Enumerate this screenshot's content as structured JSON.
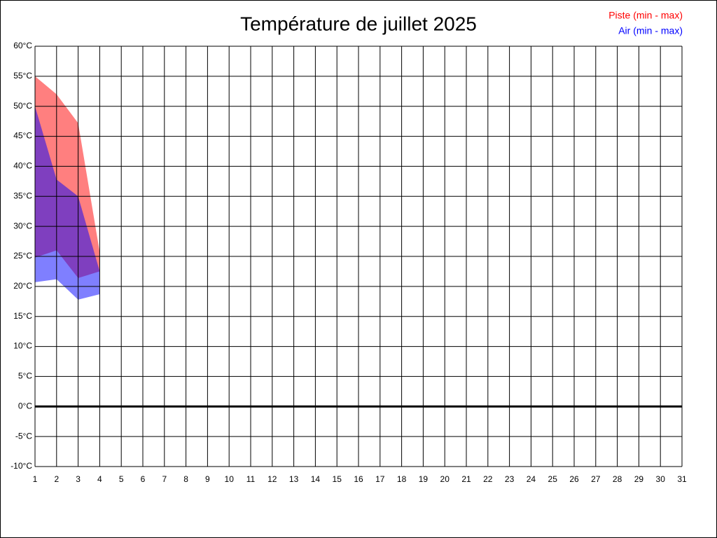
{
  "chart_data": {
    "type": "range",
    "title": "Température de juillet 2025",
    "x": [
      1,
      2,
      3,
      4
    ],
    "series": [
      {
        "name": "Piste (min - max)",
        "color": "#ff0000",
        "min": [
          24.8,
          26,
          21.4,
          22.5
        ],
        "max": [
          55,
          52,
          47.2,
          25.7
        ]
      },
      {
        "name": "Air (min - max)",
        "color": "#0000ff",
        "min": [
          20.7,
          21.2,
          17.8,
          18.7
        ],
        "max": [
          50,
          37.8,
          35,
          22.5
        ]
      }
    ],
    "xlim": [
      1,
      31
    ],
    "xticks": [
      1,
      2,
      3,
      4,
      5,
      6,
      7,
      8,
      9,
      10,
      11,
      12,
      13,
      14,
      15,
      16,
      17,
      18,
      19,
      20,
      21,
      22,
      23,
      24,
      25,
      26,
      27,
      28,
      29,
      30,
      31
    ],
    "ylim": [
      -10,
      60
    ],
    "yticks": [
      {
        "value": -10,
        "label": "-10°C"
      },
      {
        "value": -5,
        "label": "-5°C"
      },
      {
        "value": 0,
        "label": "0°C"
      },
      {
        "value": 5,
        "label": "5°C"
      },
      {
        "value": 10,
        "label": "10°C"
      },
      {
        "value": 15,
        "label": "15°C"
      },
      {
        "value": 20,
        "label": "20°C"
      },
      {
        "value": 25,
        "label": "25°C"
      },
      {
        "value": 30,
        "label": "30°C"
      },
      {
        "value": 35,
        "label": "35°C"
      },
      {
        "value": 40,
        "label": "40°C"
      },
      {
        "value": 45,
        "label": "45°C"
      },
      {
        "value": 50,
        "label": "50°C"
      },
      {
        "value": 55,
        "label": "55°C"
      },
      {
        "value": 60,
        "label": "60°C"
      }
    ],
    "grid": true
  }
}
